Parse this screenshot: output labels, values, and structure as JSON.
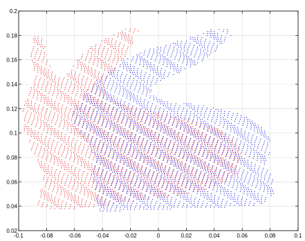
{
  "chart_data": {
    "type": "scatter",
    "title": "",
    "xlabel": "",
    "ylabel": "",
    "xlim": [
      -0.1,
      0.1
    ],
    "ylim": [
      0.02,
      0.2
    ],
    "grid": true,
    "x_ticks": [
      -0.1,
      -0.08,
      -0.06,
      -0.04,
      -0.02,
      0,
      0.02,
      0.04,
      0.06,
      0.08,
      0.1
    ],
    "x_tick_labels": [
      "-0.1",
      "-0.08",
      "-0.06",
      "-0.04",
      "-0.02",
      "0",
      "0.02",
      "0.04",
      "0.06",
      "0.08",
      "0.1"
    ],
    "y_ticks": [
      0.02,
      0.04,
      0.06,
      0.08,
      0.1,
      0.12,
      0.14,
      0.16,
      0.18,
      0.2
    ],
    "y_tick_labels": [
      "0.02",
      "0.04",
      "0.06",
      "0.08",
      "0.1",
      "0.12",
      "0.14",
      "0.16",
      "0.18",
      "0.2"
    ],
    "series": [
      {
        "color": "#e8161b",
        "marker": "dot",
        "outline": [
          [
            -0.087,
            0.04
          ],
          [
            -0.078,
            0.038
          ],
          [
            -0.06,
            0.038
          ],
          [
            -0.042,
            0.04
          ],
          [
            -0.02,
            0.044
          ],
          [
            -0.005,
            0.046
          ],
          [
            0.01,
            0.048
          ],
          [
            0.03,
            0.052
          ],
          [
            0.045,
            0.058
          ],
          [
            0.056,
            0.066
          ],
          [
            0.06,
            0.076
          ],
          [
            0.058,
            0.088
          ],
          [
            0.05,
            0.098
          ],
          [
            0.038,
            0.106
          ],
          [
            0.022,
            0.112
          ],
          [
            0.002,
            0.116
          ],
          [
            -0.02,
            0.122
          ],
          [
            -0.03,
            0.126
          ],
          [
            -0.036,
            0.132
          ],
          [
            -0.04,
            0.14
          ],
          [
            -0.032,
            0.15
          ],
          [
            -0.024,
            0.162
          ],
          [
            -0.018,
            0.174
          ],
          [
            -0.014,
            0.184
          ],
          [
            -0.02,
            0.187
          ],
          [
            -0.03,
            0.182
          ],
          [
            -0.04,
            0.176
          ],
          [
            -0.05,
            0.17
          ],
          [
            -0.058,
            0.16
          ],
          [
            -0.064,
            0.15
          ],
          [
            -0.07,
            0.145
          ],
          [
            -0.075,
            0.15
          ],
          [
            -0.08,
            0.162
          ],
          [
            -0.082,
            0.176
          ],
          [
            -0.086,
            0.183
          ],
          [
            -0.09,
            0.178
          ],
          [
            -0.092,
            0.165
          ],
          [
            -0.09,
            0.152
          ],
          [
            -0.088,
            0.144
          ],
          [
            -0.094,
            0.134
          ],
          [
            -0.097,
            0.118
          ],
          [
            -0.096,
            0.102
          ],
          [
            -0.092,
            0.088
          ],
          [
            -0.086,
            0.076
          ],
          [
            -0.082,
            0.066
          ],
          [
            -0.084,
            0.055
          ],
          [
            -0.088,
            0.046
          ]
        ]
      },
      {
        "color": "#1a1ae6",
        "marker": "dot",
        "outline": [
          [
            -0.043,
            0.036
          ],
          [
            -0.025,
            0.036
          ],
          [
            -0.005,
            0.037
          ],
          [
            0.02,
            0.038
          ],
          [
            0.045,
            0.039
          ],
          [
            0.065,
            0.04
          ],
          [
            0.078,
            0.043
          ],
          [
            0.084,
            0.052
          ],
          [
            0.082,
            0.064
          ],
          [
            0.076,
            0.074
          ],
          [
            0.08,
            0.084
          ],
          [
            0.08,
            0.096
          ],
          [
            0.072,
            0.108
          ],
          [
            0.06,
            0.115
          ],
          [
            0.044,
            0.12
          ],
          [
            0.026,
            0.124
          ],
          [
            0.004,
            0.126
          ],
          [
            -0.006,
            0.132
          ],
          [
            -0.002,
            0.14
          ],
          [
            0.008,
            0.146
          ],
          [
            0.02,
            0.152
          ],
          [
            0.034,
            0.16
          ],
          [
            0.046,
            0.172
          ],
          [
            0.052,
            0.18
          ],
          [
            0.05,
            0.186
          ],
          [
            0.04,
            0.186
          ],
          [
            0.026,
            0.18
          ],
          [
            0.01,
            0.174
          ],
          [
            -0.01,
            0.168
          ],
          [
            -0.024,
            0.16
          ],
          [
            -0.036,
            0.15
          ],
          [
            -0.048,
            0.14
          ],
          [
            -0.056,
            0.128
          ],
          [
            -0.062,
            0.116
          ],
          [
            -0.06,
            0.104
          ],
          [
            -0.052,
            0.094
          ],
          [
            -0.046,
            0.082
          ],
          [
            -0.048,
            0.068
          ],
          [
            -0.046,
            0.054
          ],
          [
            -0.044,
            0.044
          ]
        ]
      }
    ]
  }
}
